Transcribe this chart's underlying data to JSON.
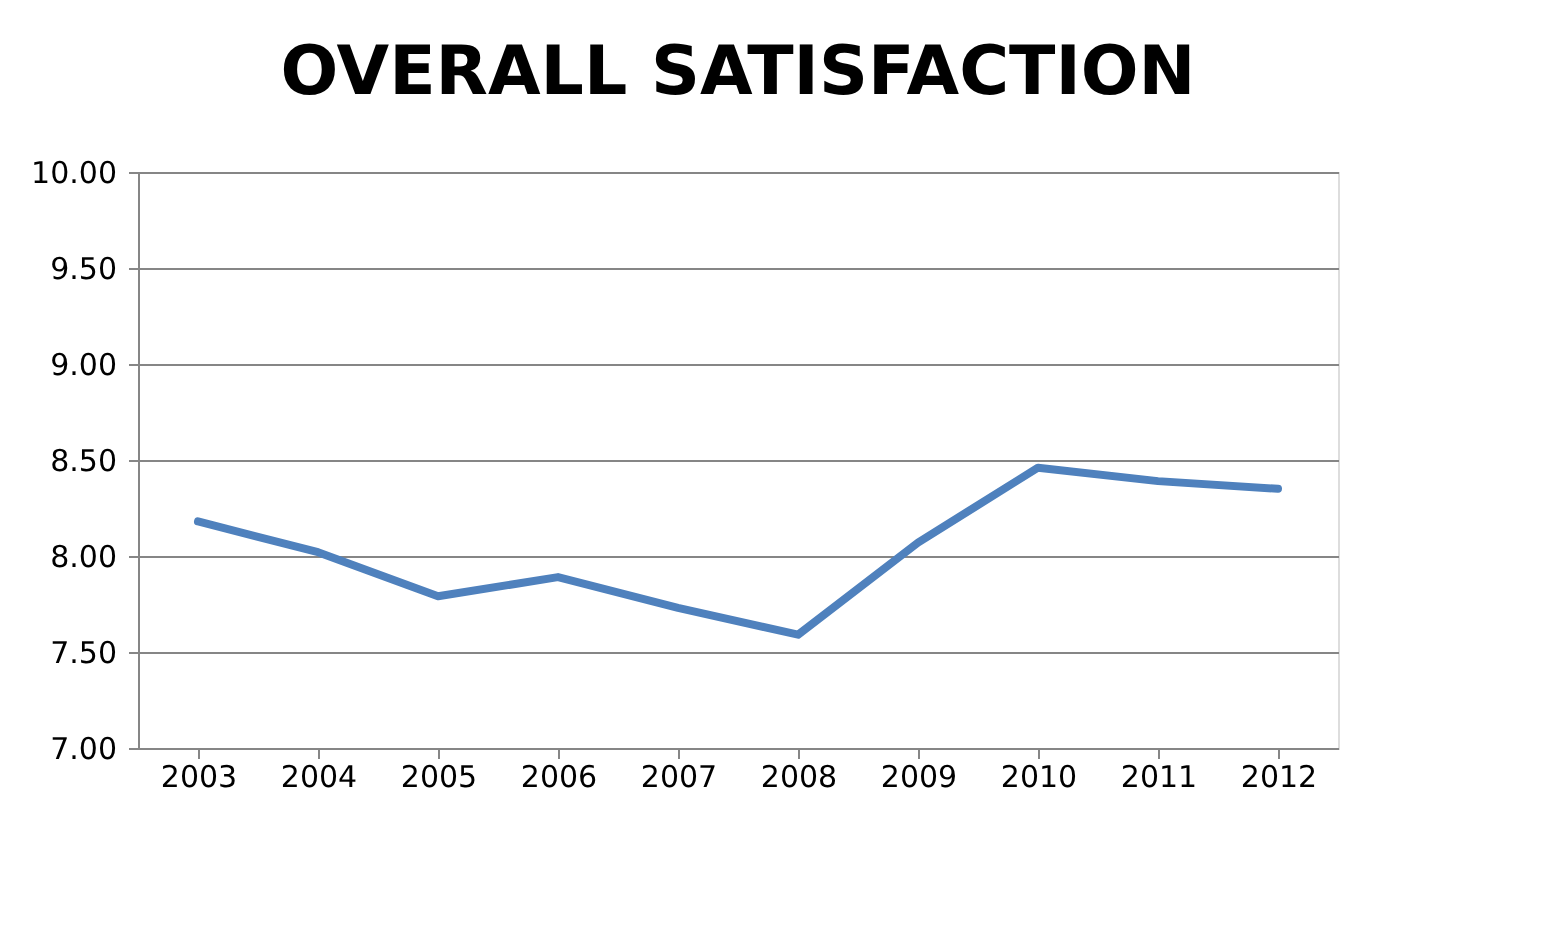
{
  "chart_data": {
    "type": "line",
    "title": "OVERALL SATISFACTION",
    "categories": [
      "2003",
      "2004",
      "2005",
      "2006",
      "2007",
      "2008",
      "2009",
      "2010",
      "2011",
      "2012"
    ],
    "series": [
      {
        "color": "#4f81bd",
        "values": [
          8.18,
          8.02,
          7.79,
          7.89,
          7.73,
          7.59,
          8.07,
          8.46,
          8.39,
          8.35
        ]
      }
    ],
    "ylim": [
      7.0,
      10.0
    ],
    "yticks": [
      {
        "value": 7.0,
        "label": "7.00"
      },
      {
        "value": 7.5,
        "label": "7.50"
      },
      {
        "value": 8.0,
        "label": "8.00"
      },
      {
        "value": 8.5,
        "label": "8.50"
      },
      {
        "value": 9.0,
        "label": "9.00"
      },
      {
        "value": 9.5,
        "label": "9.50"
      },
      {
        "value": 10.0,
        "label": "10.00"
      }
    ],
    "grid": "y",
    "marker": "none",
    "line_style": "solid"
  }
}
